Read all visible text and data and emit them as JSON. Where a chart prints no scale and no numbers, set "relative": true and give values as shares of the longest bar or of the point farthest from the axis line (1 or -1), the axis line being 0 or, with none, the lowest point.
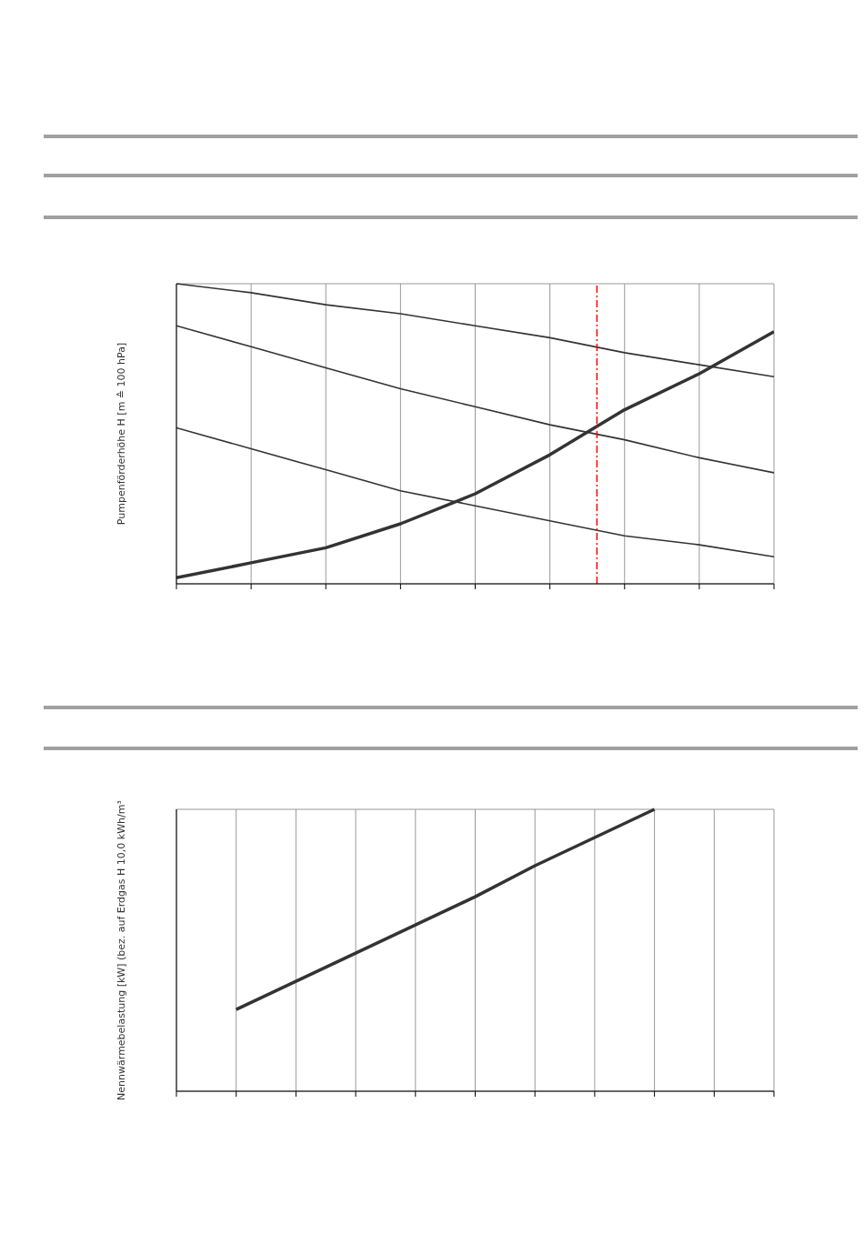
{
  "chart_data": [
    {
      "type": "line",
      "relative": true,
      "ylabel": "Pumpenförderhöhe H [m ≙ 100 hPa]",
      "categories": [
        null,
        null,
        null,
        null,
        null,
        null,
        null,
        null,
        null
      ],
      "grid": true,
      "marker": "none",
      "line_style": "solid",
      "series": [
        {
          "color": "#333333",
          "values": [
            1,
            0.97,
            0.93,
            0.9,
            0.86,
            0.82,
            0.77,
            0.73,
            0.69
          ]
        },
        {
          "color": "#333333",
          "values": [
            0.86,
            0.79,
            0.72,
            0.65,
            0.59,
            0.53,
            0.48,
            0.42,
            0.37
          ]
        },
        {
          "color": "#333333",
          "values": [
            0.52,
            0.45,
            0.38,
            0.31,
            0.26,
            0.21,
            0.16,
            0.13,
            0.09
          ]
        },
        {
          "color": "#333333",
          "values": [
            0.02,
            0.07,
            0.12,
            0.2,
            0.3,
            0.43,
            0.58,
            0.7,
            0.84
          ]
        }
      ]
    },
    {
      "type": "line",
      "relative": true,
      "ylabel": "Nennwärmebelastung [kW] (bez. auf Erdgas H 10,0 kWh/m³",
      "categories": [
        null,
        null,
        null,
        null,
        null,
        null,
        null,
        null,
        null,
        null,
        null
      ],
      "grid": true,
      "marker": "none",
      "line_style": "solid",
      "series": [
        {
          "color": "#333333",
          "values": [
            null,
            0.29,
            0.39,
            0.49,
            0.59,
            0.69,
            0.8,
            0.9,
            1.0,
            null,
            null
          ]
        }
      ]
    }
  ]
}
